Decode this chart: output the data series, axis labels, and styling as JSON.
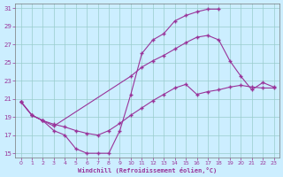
{
  "xlabel": "Windchill (Refroidissement éolien,°C)",
  "ylabel": "",
  "bg_color": "#cceeff",
  "line_color": "#993399",
  "grid_color": "#99cccc",
  "xlim": [
    -0.5,
    23.5
  ],
  "ylim": [
    14.5,
    31.5
  ],
  "xticks": [
    0,
    1,
    2,
    3,
    4,
    5,
    6,
    7,
    8,
    9,
    10,
    11,
    12,
    13,
    14,
    15,
    16,
    17,
    18,
    19,
    20,
    21,
    22,
    23
  ],
  "yticks": [
    15,
    17,
    19,
    21,
    23,
    25,
    27,
    29,
    31
  ],
  "curve1_x": [
    0,
    1,
    2,
    3,
    4,
    5,
    6,
    7,
    8,
    9,
    10,
    11,
    12,
    13,
    14,
    15,
    16,
    17,
    18
  ],
  "curve1_y": [
    20.7,
    19.2,
    18.6,
    17.5,
    17.0,
    15.5,
    15.0,
    15.0,
    15.0,
    17.5,
    21.5,
    26.0,
    27.5,
    28.2,
    29.6,
    30.2,
    30.6,
    30.9,
    30.9
  ],
  "curve2_x": [
    0,
    1,
    2,
    3,
    10,
    11,
    12,
    13,
    14,
    15,
    16,
    17,
    18,
    19,
    20,
    21,
    22,
    23
  ],
  "curve2_y": [
    20.7,
    19.2,
    18.6,
    18.0,
    23.5,
    24.5,
    25.2,
    25.8,
    26.5,
    27.2,
    27.8,
    28.0,
    27.5,
    25.2,
    23.5,
    22.0,
    22.8,
    22.3
  ],
  "curve3_x": [
    0,
    1,
    2,
    3,
    4,
    5,
    6,
    7,
    8,
    9,
    10,
    11,
    12,
    13,
    14,
    15,
    16,
    17,
    18,
    19,
    20,
    21,
    22,
    23
  ],
  "curve3_y": [
    20.7,
    19.2,
    18.6,
    18.2,
    17.9,
    17.5,
    17.2,
    17.0,
    17.5,
    18.3,
    19.2,
    20.0,
    20.8,
    21.5,
    22.2,
    22.6,
    21.5,
    21.8,
    22.0,
    22.3,
    22.5,
    22.3,
    22.2,
    22.2
  ]
}
